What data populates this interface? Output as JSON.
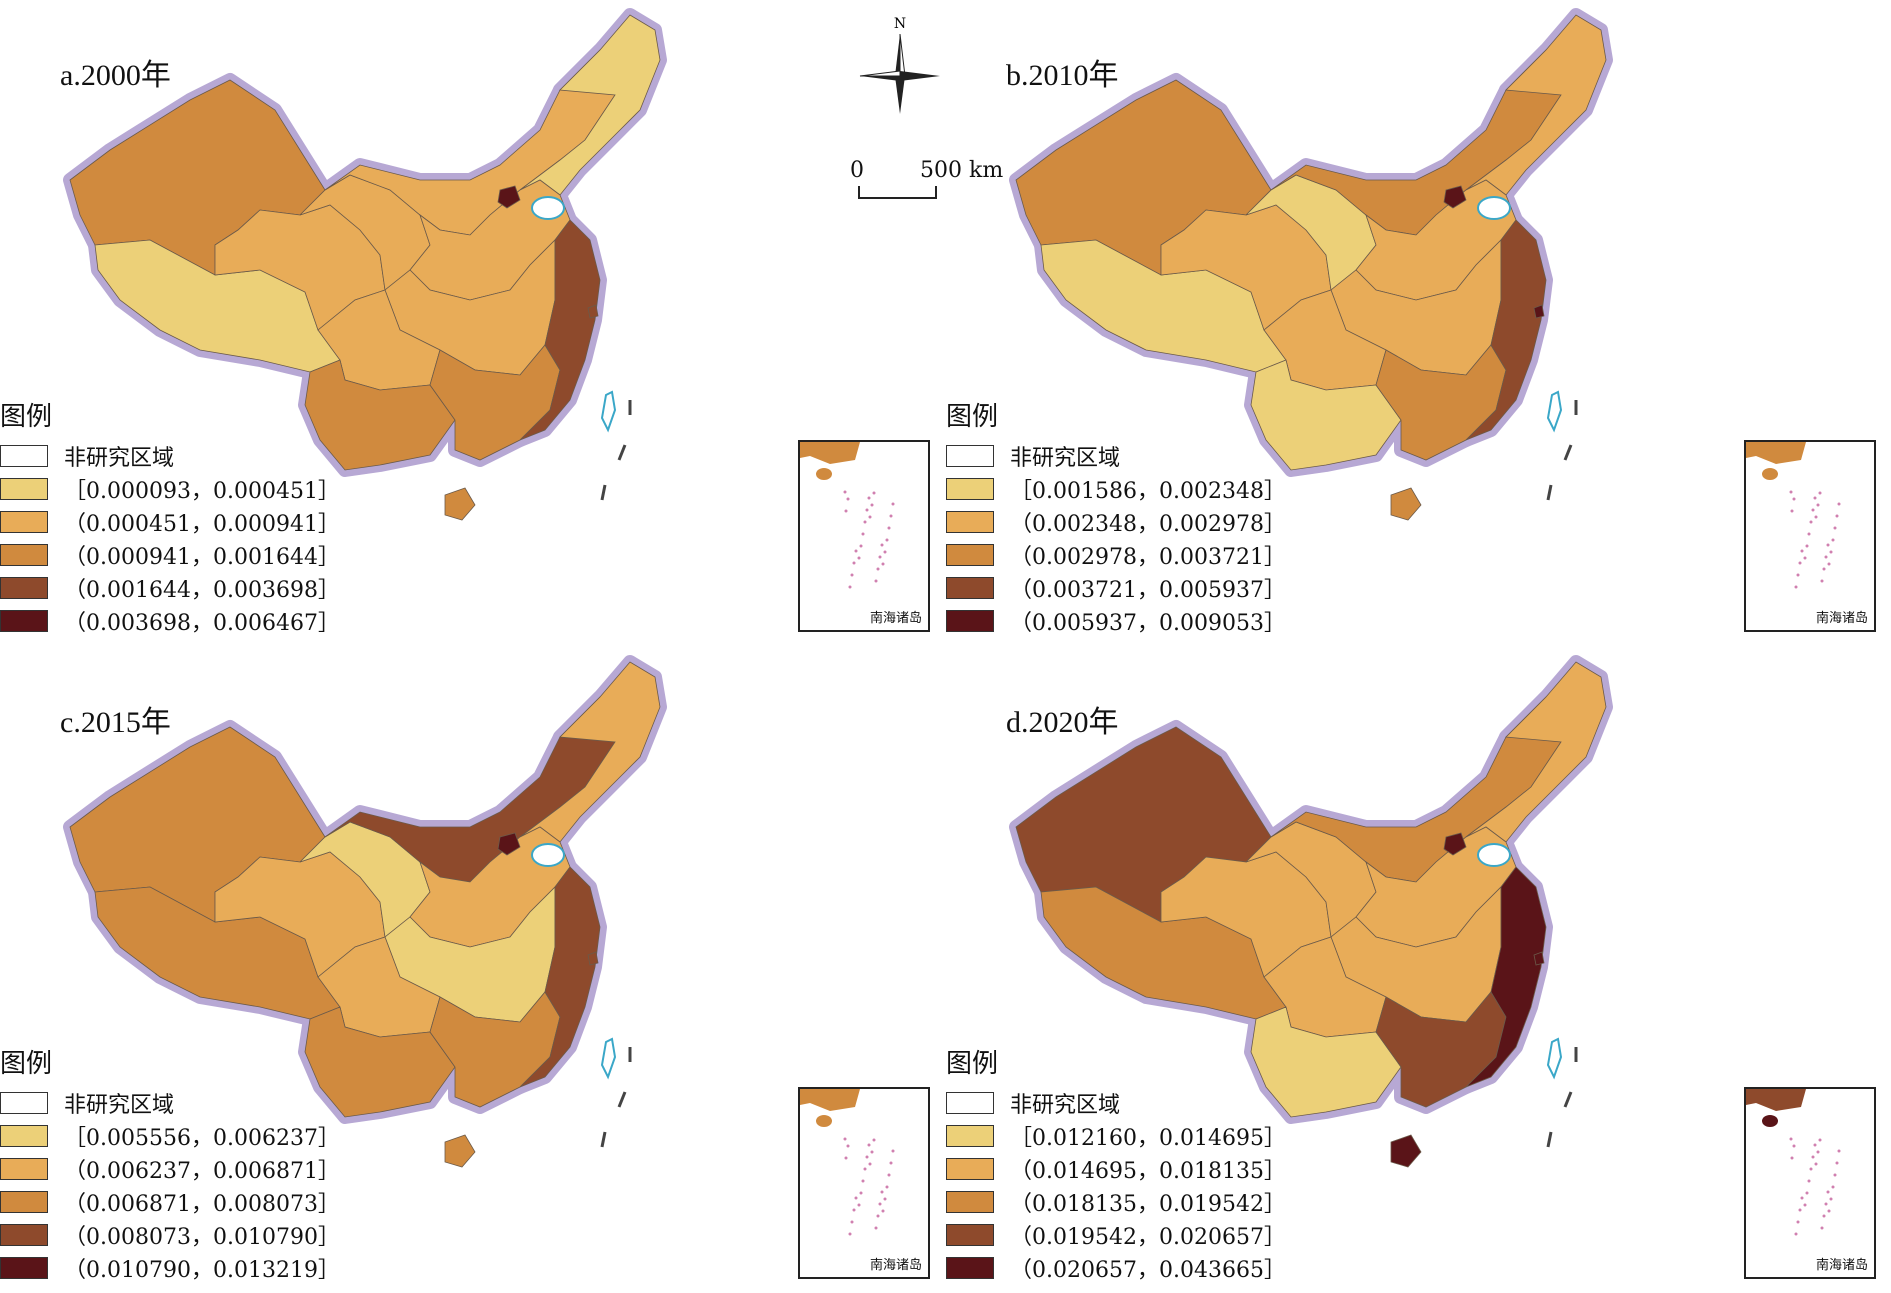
{
  "map_common": {
    "legend_title": "图例",
    "non_study_label": "非研究区域",
    "inset_label": "南海诸岛",
    "north_label": "N",
    "scale": {
      "zero": "0",
      "distance": "500 km"
    },
    "colors": {
      "class1": "#ecd078",
      "class2": "#e8ac58",
      "class3": "#d08a3e",
      "class4": "#8e4a2c",
      "class5": "#5a1418",
      "non_study": "#ffffff",
      "border_glow": "#b7a8d4",
      "coast": "#3aa7c8"
    }
  },
  "panels": [
    {
      "title": "a.2000年",
      "legend": [
        "［0.000093，0.000451］",
        "（0.000451，0.000941］",
        "（0.000941，0.001644］",
        "（0.001644，0.003698］",
        "（0.003698，0.006467］"
      ],
      "region_classes": {
        "xinjiang": 3,
        "tibet": 1,
        "qinghai": 2,
        "gansu": 2,
        "inner_mongolia": 2,
        "northeast": 1,
        "north_china": 2,
        "central": 2,
        "sichuan": 2,
        "southwest": 3,
        "south": 3,
        "east_coast": 4,
        "hainan": 3,
        "beijing": 5,
        "shanghai": 4
      }
    },
    {
      "title": "b.2010年",
      "legend": [
        "［0.001586，0.002348］",
        "（0.002348，0.002978］",
        "（0.002978，0.003721］",
        "（0.003721，0.005937］",
        "（0.005937，0.009053］"
      ],
      "region_classes": {
        "xinjiang": 3,
        "tibet": 1,
        "qinghai": 2,
        "gansu": 1,
        "inner_mongolia": 3,
        "northeast": 2,
        "north_china": 2,
        "central": 2,
        "sichuan": 2,
        "southwest": 1,
        "south": 3,
        "east_coast": 4,
        "hainan": 3,
        "beijing": 5,
        "shanghai": 5
      }
    },
    {
      "title": "c.2015年",
      "legend": [
        "［0.005556，0.006237］",
        "（0.006237，0.006871］",
        "（0.006871，0.008073］",
        "（0.008073，0.010790］",
        "（0.010790，0.013219］"
      ],
      "region_classes": {
        "xinjiang": 3,
        "tibet": 3,
        "qinghai": 2,
        "gansu": 1,
        "inner_mongolia": 4,
        "northeast": 2,
        "north_china": 2,
        "central": 1,
        "sichuan": 2,
        "southwest": 3,
        "south": 3,
        "east_coast": 4,
        "hainan": 3,
        "beijing": 5,
        "shanghai": 4
      }
    },
    {
      "title": "d.2020年",
      "legend": [
        "［0.012160，0.014695］",
        "（0.014695，0.018135］",
        "（0.018135，0.019542］",
        "（0.019542，0.020657］",
        "（0.020657，0.043665］"
      ],
      "region_classes": {
        "xinjiang": 4,
        "tibet": 3,
        "qinghai": 2,
        "gansu": 2,
        "inner_mongolia": 3,
        "northeast": 2,
        "north_china": 2,
        "central": 2,
        "sichuan": 2,
        "southwest": 1,
        "south": 4,
        "east_coast": 5,
        "hainan": 5,
        "beijing": 5,
        "shanghai": 5
      }
    }
  ]
}
